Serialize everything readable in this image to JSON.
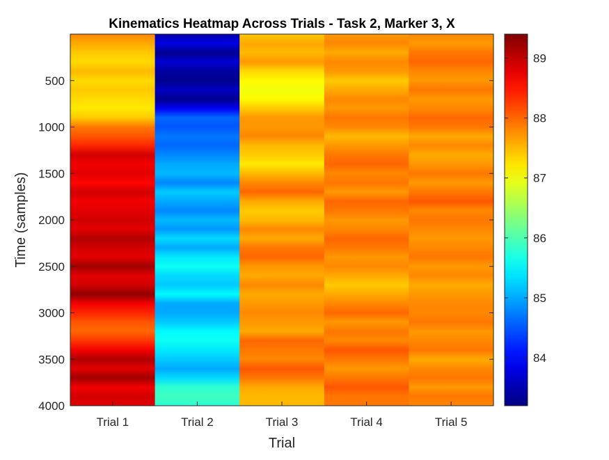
{
  "chart_data": {
    "type": "heatmap",
    "title": "Kinematics Heatmap Across Trials - Task 2, Marker 3, X",
    "xlabel": "Trial",
    "ylabel": "Time (samples)",
    "x_categories": [
      "Trial 1",
      "Trial 2",
      "Trial 3",
      "Trial 4",
      "Trial 5"
    ],
    "ylim": [
      0,
      4000
    ],
    "y_reversed": true,
    "y_ticks": [
      500,
      1000,
      1500,
      2000,
      2500,
      3000,
      3500,
      4000
    ],
    "colormap": "jet",
    "color_range": [
      83.2,
      89.4
    ],
    "colorbar_ticks": [
      84,
      85,
      86,
      87,
      88,
      89
    ],
    "series": [
      {
        "time": [
          0,
          100,
          200,
          300,
          400,
          500,
          600,
          700,
          800,
          900,
          1000,
          1100,
          1200,
          1300,
          1400,
          1500,
          1600,
          1700,
          1800,
          1900,
          2000,
          2100,
          2200,
          2300,
          2400,
          2500,
          2600,
          2700,
          2800,
          2900,
          3000,
          3100,
          3200,
          3300,
          3400,
          3500,
          3600,
          3700,
          3800,
          3900,
          4000
        ],
        "values": [
          87.8,
          87.6,
          87.4,
          87.3,
          87.5,
          87.3,
          87.4,
          87.3,
          87.2,
          87.4,
          87.9,
          88.1,
          88.4,
          88.9,
          88.7,
          88.8,
          88.6,
          88.9,
          88.7,
          88.8,
          88.9,
          88.8,
          89.1,
          88.9,
          88.8,
          89.2,
          88.8,
          88.9,
          89.3,
          88.7,
          88.4,
          88.1,
          88.0,
          88.3,
          88.7,
          89.1,
          88.8,
          89.2,
          88.7,
          88.9,
          88.8
        ]
      },
      {
        "time": [
          0,
          100,
          200,
          300,
          400,
          500,
          600,
          700,
          800,
          900,
          1000,
          1100,
          1200,
          1300,
          1400,
          1500,
          1600,
          1700,
          1800,
          1900,
          2000,
          2100,
          2200,
          2300,
          2400,
          2500,
          2600,
          2700,
          2800,
          2900,
          3000,
          3100,
          3200,
          3300,
          3400,
          3500,
          3600,
          3700,
          3800,
          3900,
          4000
        ],
        "values": [
          83.5,
          83.8,
          83.3,
          83.7,
          83.4,
          83.3,
          83.6,
          83.3,
          83.9,
          84.6,
          84.5,
          84.7,
          84.6,
          84.8,
          85.0,
          85.1,
          84.8,
          85.2,
          85.0,
          84.8,
          85.1,
          84.9,
          85.3,
          85.0,
          85.4,
          85.6,
          85.3,
          85.2,
          85.5,
          85.0,
          85.0,
          85.2,
          85.5,
          85.6,
          85.4,
          85.2,
          85.0,
          85.3,
          85.8,
          85.9,
          85.8
        ]
      },
      {
        "time": [
          0,
          100,
          200,
          300,
          400,
          500,
          600,
          700,
          800,
          900,
          1000,
          1100,
          1200,
          1300,
          1400,
          1500,
          1600,
          1700,
          1800,
          1900,
          2000,
          2100,
          2200,
          2300,
          2400,
          2500,
          2600,
          2700,
          2800,
          2900,
          3000,
          3100,
          3200,
          3300,
          3400,
          3500,
          3600,
          3700,
          3800,
          3900,
          4000
        ],
        "values": [
          87.4,
          87.6,
          87.5,
          87.7,
          87.3,
          87.1,
          87.0,
          87.1,
          87.4,
          87.7,
          87.7,
          87.8,
          87.5,
          87.4,
          87.2,
          87.5,
          87.8,
          88.0,
          87.6,
          87.4,
          87.5,
          87.8,
          87.6,
          87.9,
          88.0,
          87.7,
          87.6,
          87.8,
          87.6,
          87.7,
          87.8,
          87.7,
          87.6,
          88.0,
          87.9,
          87.8,
          88.1,
          87.9,
          87.6,
          87.5,
          87.5
        ]
      },
      {
        "time": [
          0,
          100,
          200,
          300,
          400,
          500,
          600,
          700,
          800,
          900,
          1000,
          1100,
          1200,
          1300,
          1400,
          1500,
          1600,
          1700,
          1800,
          1900,
          2000,
          2100,
          2200,
          2300,
          2400,
          2500,
          2600,
          2700,
          2800,
          2900,
          3000,
          3100,
          3200,
          3300,
          3400,
          3500,
          3600,
          3700,
          3800,
          3900,
          4000
        ],
        "values": [
          87.7,
          87.8,
          87.6,
          87.8,
          87.7,
          87.4,
          87.6,
          87.8,
          87.7,
          87.9,
          87.8,
          87.5,
          87.7,
          87.9,
          88.0,
          87.8,
          87.9,
          87.7,
          88.0,
          87.9,
          87.7,
          87.8,
          88.0,
          87.9,
          87.7,
          87.8,
          87.6,
          87.4,
          87.6,
          87.8,
          88.0,
          87.7,
          87.9,
          87.8,
          88.1,
          87.9,
          87.7,
          87.9,
          88.1,
          87.9,
          87.9
        ]
      },
      {
        "time": [
          0,
          100,
          200,
          300,
          400,
          500,
          600,
          700,
          800,
          900,
          1000,
          1100,
          1200,
          1300,
          1400,
          1500,
          1600,
          1700,
          1800,
          1900,
          2000,
          2100,
          2200,
          2300,
          2400,
          2500,
          2600,
          2700,
          2800,
          2900,
          3000,
          3100,
          3200,
          3300,
          3400,
          3500,
          3600,
          3700,
          3800,
          3900,
          4000
        ],
        "values": [
          87.8,
          87.7,
          87.9,
          88.0,
          87.8,
          87.7,
          87.9,
          87.7,
          87.8,
          88.0,
          87.9,
          87.6,
          87.8,
          87.6,
          87.7,
          87.9,
          87.7,
          87.9,
          88.1,
          87.8,
          87.9,
          87.8,
          87.7,
          87.8,
          87.9,
          87.7,
          87.8,
          87.6,
          87.7,
          87.8,
          87.8,
          87.9,
          87.7,
          87.8,
          87.9,
          87.6,
          87.8,
          87.9,
          87.7,
          87.9,
          87.8
        ]
      }
    ]
  }
}
